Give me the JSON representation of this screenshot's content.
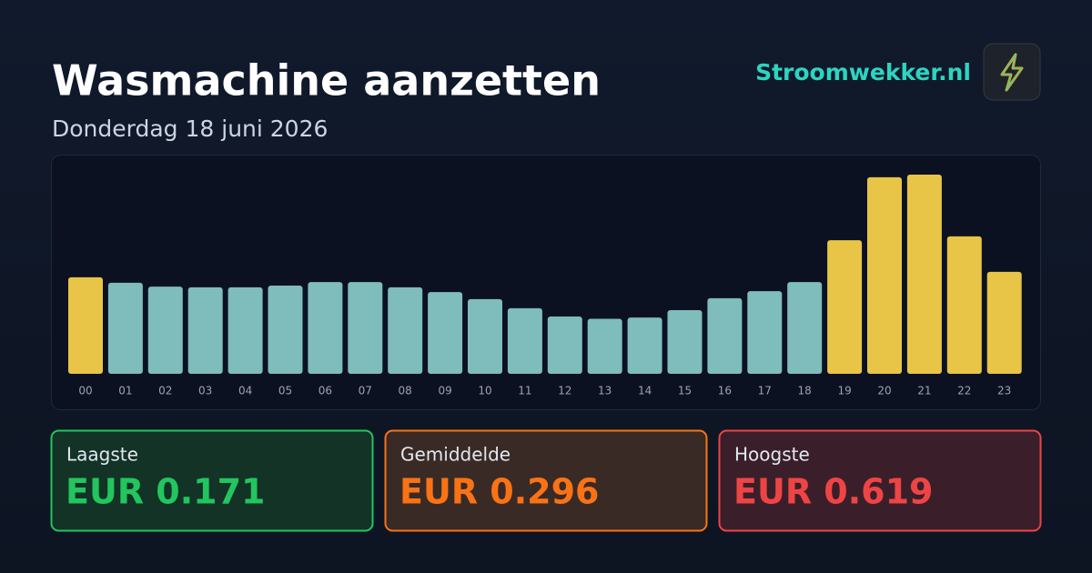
{
  "header": {
    "title": "Wasmachine aanzetten",
    "subtitle": "Donderdag 18 juni 2026",
    "brand": "Stroomwekker.nl"
  },
  "chart_data": {
    "type": "bar",
    "categories": [
      "00",
      "01",
      "02",
      "03",
      "04",
      "05",
      "06",
      "07",
      "08",
      "09",
      "10",
      "11",
      "12",
      "13",
      "14",
      "15",
      "16",
      "17",
      "18",
      "19",
      "20",
      "21",
      "22",
      "23"
    ],
    "values": [
      0.3,
      0.283,
      0.271,
      0.269,
      0.269,
      0.274,
      0.285,
      0.285,
      0.269,
      0.254,
      0.232,
      0.204,
      0.178,
      0.171,
      0.175,
      0.198,
      0.235,
      0.257,
      0.285,
      0.415,
      0.611,
      0.619,
      0.427,
      0.317
    ],
    "colors": [
      "#e8c547",
      "#7fbcbc",
      "#7fbcbc",
      "#7fbcbc",
      "#7fbcbc",
      "#7fbcbc",
      "#7fbcbc",
      "#7fbcbc",
      "#7fbcbc",
      "#7fbcbc",
      "#7fbcbc",
      "#7fbcbc",
      "#7fbcbc",
      "#7fbcbc",
      "#7fbcbc",
      "#7fbcbc",
      "#7fbcbc",
      "#7fbcbc",
      "#7fbcbc",
      "#e8c547",
      "#e8c547",
      "#e8c547",
      "#e8c547",
      "#e8c547"
    ]
  },
  "cards": [
    {
      "label": "Laagste",
      "value": "EUR 0.171"
    },
    {
      "label": "Gemiddelde",
      "value": "EUR 0.296"
    },
    {
      "label": "Hoogste",
      "value": "EUR 0.619"
    }
  ]
}
